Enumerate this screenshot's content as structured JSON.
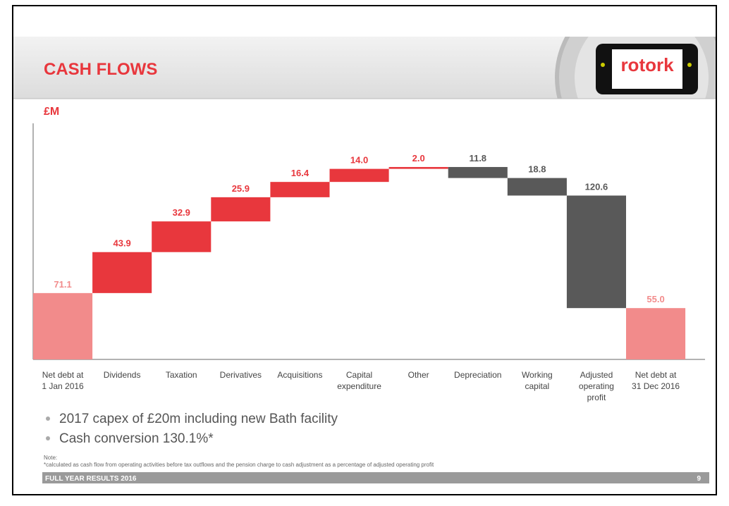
{
  "header": {
    "title": "CASH FLOWS",
    "logo": "rotork"
  },
  "chart_data": {
    "type": "waterfall",
    "unit_label": "£M",
    "categories": [
      "Net debt at\n1 Jan 2016",
      "Dividends",
      "Taxation",
      "Derivatives",
      "Acquisitions",
      "Capital\nexpenditure",
      "Other",
      "Depreciation",
      "Working\ncapital",
      "Adjusted\noperating\nprofit",
      "Net debt at\n31 Dec 2016"
    ],
    "values": [
      71.1,
      43.9,
      32.9,
      25.9,
      16.4,
      14.0,
      2.0,
      -11.8,
      -18.8,
      -120.6,
      55.0
    ],
    "value_labels": [
      "71.1",
      "43.9",
      "32.9",
      "25.9",
      "16.4",
      "14.0",
      "2.0",
      "11.8",
      "18.8",
      "120.6",
      "55.0"
    ],
    "colors": [
      "#f28b8b",
      "#e8373d",
      "#e8373d",
      "#e8373d",
      "#e8373d",
      "#e8373d",
      "#e8373d",
      "#595959",
      "#595959",
      "#595959",
      "#f28b8b"
    ],
    "ylim": [
      0,
      253
    ]
  },
  "bullets": [
    "2017 capex of £20m including new Bath facility",
    "Cash conversion 130.1%*"
  ],
  "note": {
    "heading": "Note:",
    "text": "*calculated as cash flow from operating activities before tax outflows and the pension charge to cash adjustment as a percentage of adjusted operating profit"
  },
  "footer": {
    "text": "FULL YEAR RESULTS 2016",
    "page": "9"
  }
}
